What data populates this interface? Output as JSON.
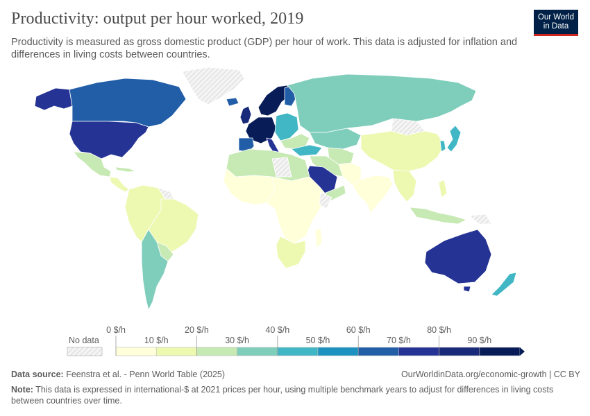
{
  "header": {
    "title": "Productivity: output per hour worked, 2019",
    "subtitle": "Productivity is measured as gross domestic product (GDP) per hour of work. This data is adjusted for inflation and differences in living costs between countries.",
    "logo_line1": "Our World",
    "logo_line2": "in Data"
  },
  "legend": {
    "no_data_label": "No data",
    "upper_labels": [
      "0 $/h",
      "20 $/h",
      "40 $/h",
      "60 $/h",
      "80 $/h"
    ],
    "lower_labels": [
      "10 $/h",
      "30 $/h",
      "50 $/h",
      "70 $/h",
      "90 $/h"
    ],
    "bin_colors": [
      "#ffffd9",
      "#edf8b1",
      "#c7e9b4",
      "#7fcdbb",
      "#41b6c4",
      "#1d91c0",
      "#225ea8",
      "#253494",
      "#1a2a7a",
      "#081d58"
    ]
  },
  "footer": {
    "source_label": "Data source:",
    "source_text": "Feenstra et al. - Penn World Table (2025)",
    "url": "OurWorldinData.org/economic-growth | CC BY",
    "note_label": "Note:",
    "note_text": "This data is expressed in international-$ at 2021 prices per hour, using multiple benchmark years to adjust for differences in living costs between countries over time."
  },
  "map_colors": {
    "no_data": "#e8e8e8",
    "border": "#ffffff"
  }
}
